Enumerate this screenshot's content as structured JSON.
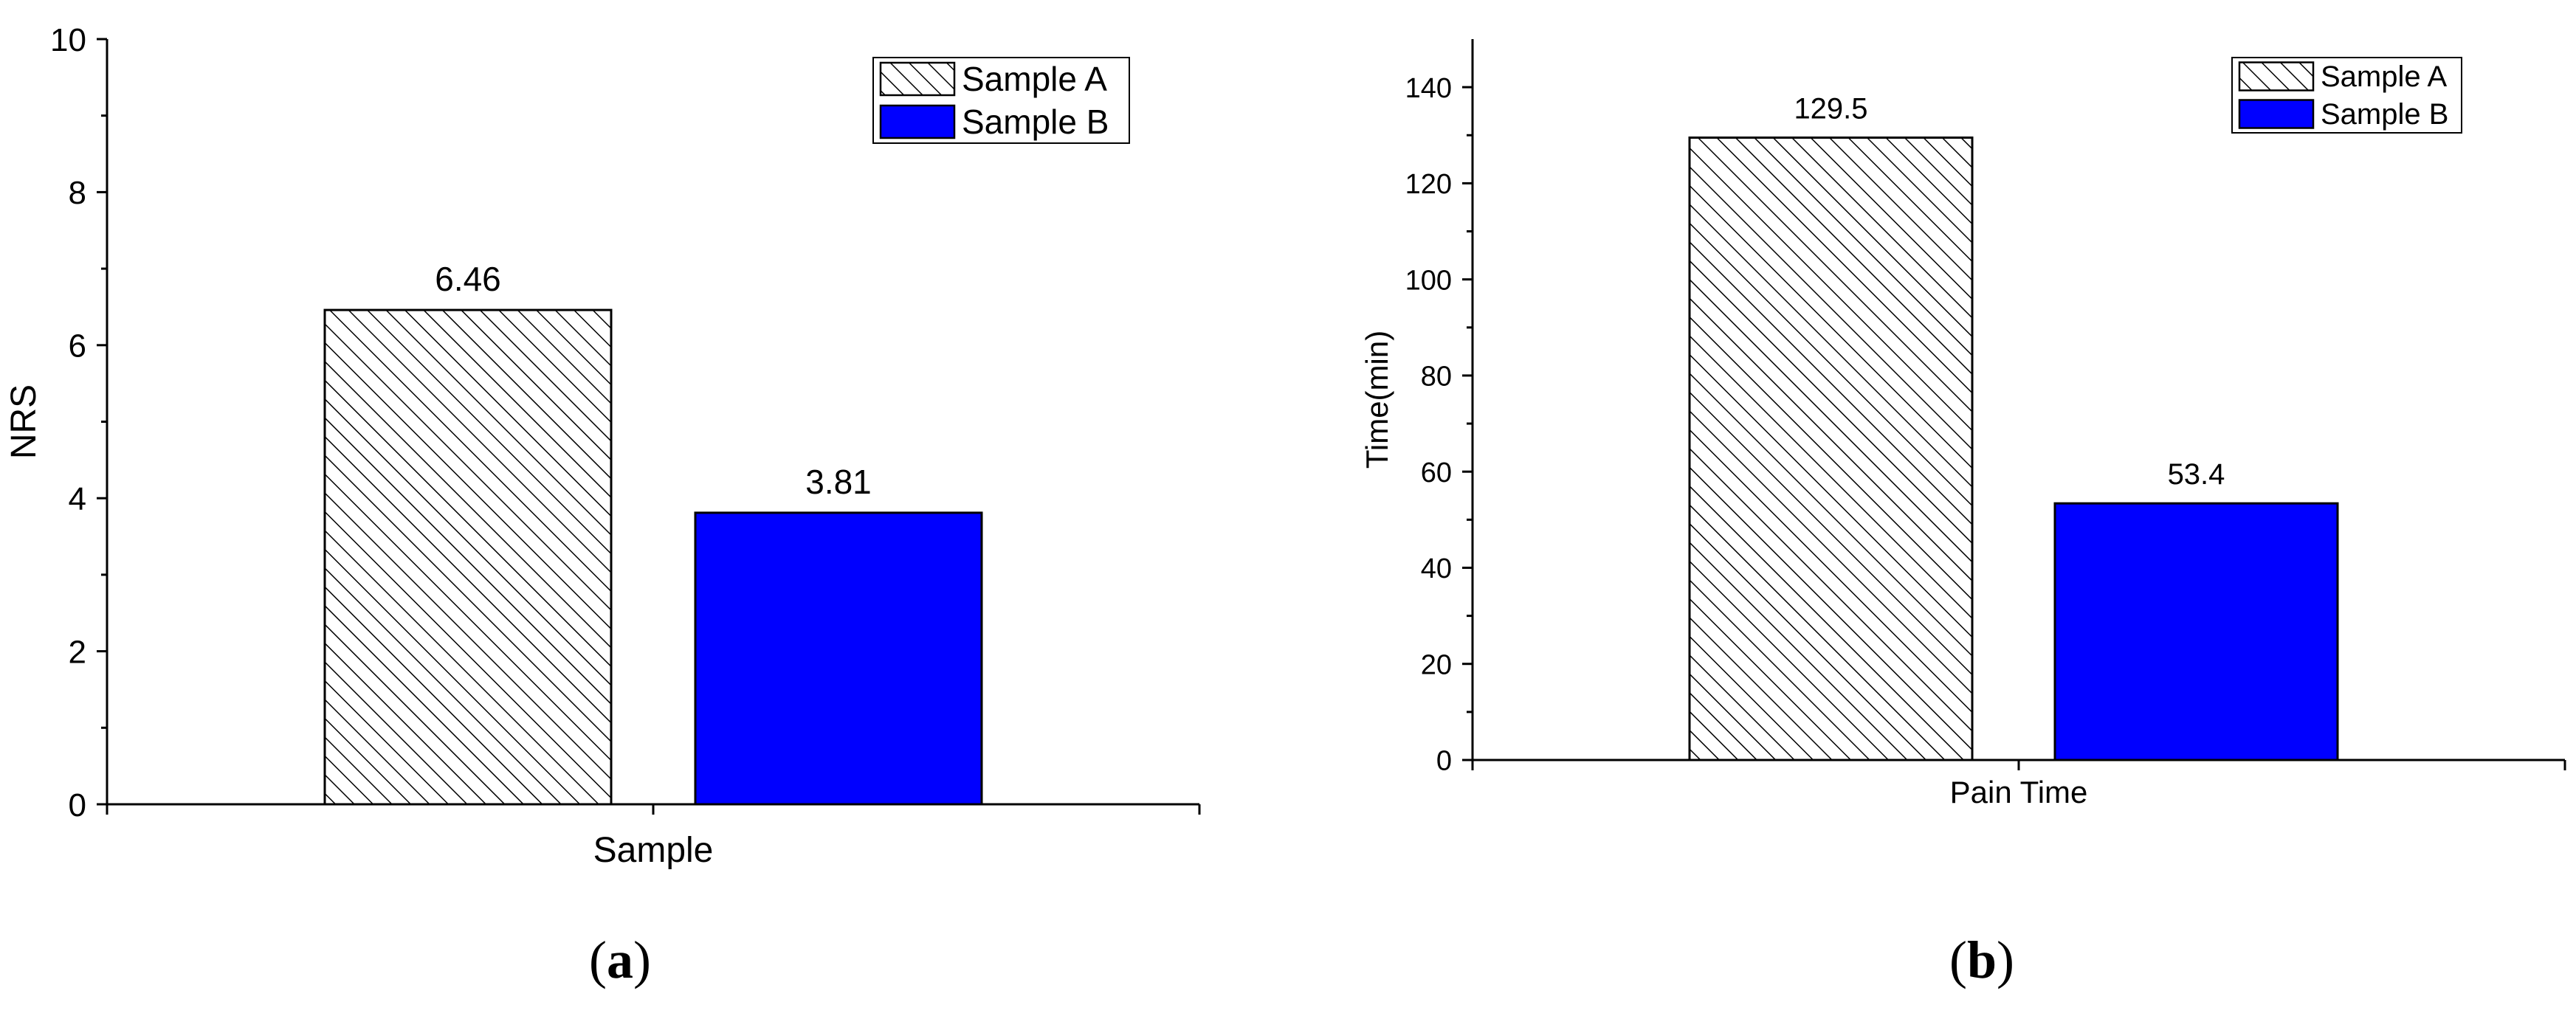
{
  "colors": {
    "sample_b": "#0000ff",
    "hatch": "#000000",
    "background": "#ffffff"
  },
  "chart_data": [
    {
      "type": "bar",
      "panel_label": "a",
      "categories": [
        "Sample"
      ],
      "xlabel": "Sample",
      "ylabel": "NRS",
      "ylim": [
        0,
        10
      ],
      "yticks": [
        "0",
        "2",
        "4",
        "6",
        "8",
        "10"
      ],
      "legend_position": "top-right",
      "series": [
        {
          "name": "Sample A",
          "values": [
            6.46
          ],
          "value_labels": [
            "6.46"
          ],
          "fill": "hatched"
        },
        {
          "name": "Sample B",
          "values": [
            3.81
          ],
          "value_labels": [
            "3.81"
          ],
          "fill": "#0000ff"
        }
      ]
    },
    {
      "type": "bar",
      "panel_label": "b",
      "categories": [
        "Pain Time"
      ],
      "xlabel": "Pain Time",
      "ylabel": "Time(min)",
      "ylim": [
        0,
        150
      ],
      "yticks": [
        "0",
        "20",
        "40",
        "60",
        "80",
        "100",
        "120",
        "140"
      ],
      "legend_position": "top-right",
      "series": [
        {
          "name": "Sample A",
          "values": [
            129.5
          ],
          "value_labels": [
            "129.5"
          ],
          "fill": "hatched"
        },
        {
          "name": "Sample B",
          "values": [
            53.4
          ],
          "value_labels": [
            "53.4"
          ],
          "fill": "#0000ff"
        }
      ]
    }
  ]
}
